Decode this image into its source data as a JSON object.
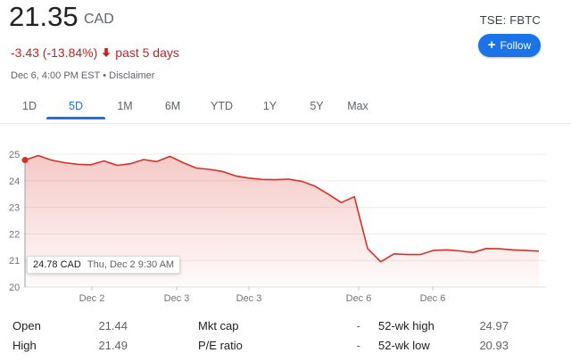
{
  "quote": {
    "price": "21.35",
    "currency": "CAD",
    "change": "-3.43 (-13.84%)",
    "period": "past 5 days",
    "timestamp": "Dec 6, 4:00 PM EST",
    "separator": "•",
    "disclaimer": "Disclaimer",
    "ticker": "TSE: FBTC",
    "follow_label": "Follow",
    "colors": {
      "down": "#c5221f",
      "accent": "#1a73e8",
      "line": "#d93025"
    }
  },
  "ranges": [
    "1D",
    "5D",
    "1M",
    "6M",
    "YTD",
    "1Y",
    "5Y",
    "Max"
  ],
  "active_range": "5D",
  "tooltip": {
    "value": "24.78 CAD",
    "time": "Thu, Dec 2 9:30 AM"
  },
  "chart_data": {
    "type": "line",
    "ylim": [
      20,
      25
    ],
    "y_ticks": [
      "25",
      "24",
      "23",
      "22",
      "21",
      "20"
    ],
    "x_tick_labels": [
      "Dec 2",
      "Dec 3",
      "Dec 3",
      "Dec 6",
      "Dec 6"
    ],
    "series": [
      {
        "values": [
          24.78,
          24.95,
          24.78,
          24.68,
          24.62,
          24.6,
          24.75,
          24.58,
          24.64,
          24.8,
          24.72,
          24.92,
          24.68,
          24.48,
          24.43,
          24.35,
          24.18,
          24.1,
          24.05,
          24.04,
          24.06,
          23.98,
          23.8,
          23.5,
          23.18,
          23.4,
          21.45,
          20.95,
          21.25,
          21.22,
          21.22,
          21.38,
          21.4,
          21.36,
          21.3,
          21.45,
          21.44,
          21.4,
          21.38,
          21.35
        ]
      }
    ]
  },
  "stats": [
    [
      {
        "label": "Open",
        "value": "21.44"
      },
      {
        "label": "Mkt cap",
        "value": "-"
      },
      {
        "label": "52-wk high",
        "value": "24.97"
      }
    ],
    [
      {
        "label": "High",
        "value": "21.49"
      },
      {
        "label": "P/E ratio",
        "value": "-"
      },
      {
        "label": "52-wk low",
        "value": "20.93"
      }
    ]
  ]
}
